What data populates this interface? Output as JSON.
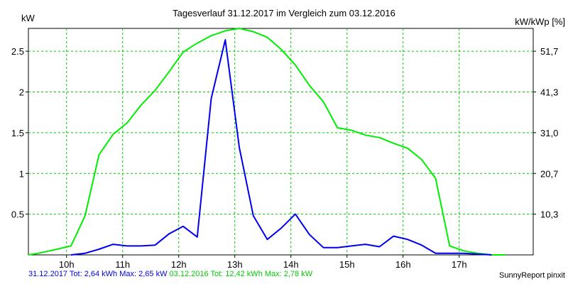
{
  "chart_data": {
    "type": "line",
    "title": "Tagesverlauf 31.12.2017 im Vergleich zum 03.12.2016",
    "ylabel_left": "kW",
    "ylabel_right": "kW/kWp [%]",
    "xlim": [
      9.32,
      18.32
    ],
    "ylim": [
      0,
      2.78
    ],
    "x_ticks": [
      10,
      11,
      12,
      13,
      14,
      15,
      16,
      17
    ],
    "x_tick_labels": [
      "10h",
      "11h",
      "12h",
      "13h",
      "14h",
      "15h",
      "16h",
      "17h"
    ],
    "y_ticks_left": [
      0.5,
      1,
      1.5,
      2,
      2.5
    ],
    "y_tick_labels_left": [
      "0.5",
      "1",
      "1.5",
      "2",
      "2.5"
    ],
    "y_tick_labels_right": [
      "10,3",
      "20,7",
      "31,0",
      "41,3",
      "51,7"
    ],
    "grid": true,
    "series": [
      {
        "color": "#00ee00",
        "x": [
          9.32,
          9.5,
          9.83,
          10.08,
          10.33,
          10.58,
          10.83,
          11.08,
          11.33,
          11.58,
          11.83,
          12.08,
          12.33,
          12.58,
          12.83,
          13.08,
          13.33,
          13.58,
          13.83,
          14.08,
          14.33,
          14.58,
          14.83,
          15.08,
          15.33,
          15.58,
          15.83,
          16.08,
          16.33,
          16.58,
          16.83,
          17.08,
          17.33,
          17.58,
          17.83
        ],
        "y": [
          0.0,
          0.02,
          0.07,
          0.11,
          0.48,
          1.23,
          1.48,
          1.62,
          1.84,
          2.02,
          2.25,
          2.49,
          2.6,
          2.69,
          2.75,
          2.78,
          2.74,
          2.67,
          2.52,
          2.33,
          2.08,
          1.88,
          1.56,
          1.53,
          1.47,
          1.44,
          1.37,
          1.31,
          1.17,
          0.94,
          0.11,
          0.05,
          0.02,
          0.0,
          0.0
        ]
      },
      {
        "color": "#0000ee",
        "x": [
          10.08,
          10.33,
          10.58,
          10.83,
          11.08,
          11.33,
          11.58,
          11.83,
          12.08,
          12.33,
          12.58,
          12.83,
          13.08,
          13.33,
          13.58,
          13.83,
          14.08,
          14.33,
          14.58,
          14.83,
          15.08,
          15.33,
          15.58,
          15.83,
          16.08,
          16.33,
          16.58,
          16.83,
          17.08,
          17.33,
          17.58
        ],
        "y": [
          0.0,
          0.02,
          0.07,
          0.13,
          0.11,
          0.11,
          0.12,
          0.26,
          0.35,
          0.22,
          1.92,
          2.64,
          1.32,
          0.48,
          0.19,
          0.33,
          0.5,
          0.25,
          0.09,
          0.09,
          0.11,
          0.13,
          0.1,
          0.23,
          0.19,
          0.12,
          0.02,
          0.02,
          0.02,
          0.01,
          0.0
        ]
      }
    ]
  },
  "footer": {
    "summary_a": "31.12.2017 Tot: 2,64 kWh Max: 2,65 kW",
    "summary_b": "03.12.2016 Tot: 12,42 kWh Max: 2,78 kW",
    "credit": "SunnyReport pinxit",
    "color_a": "#0000ee",
    "color_b": "#00ee00"
  }
}
